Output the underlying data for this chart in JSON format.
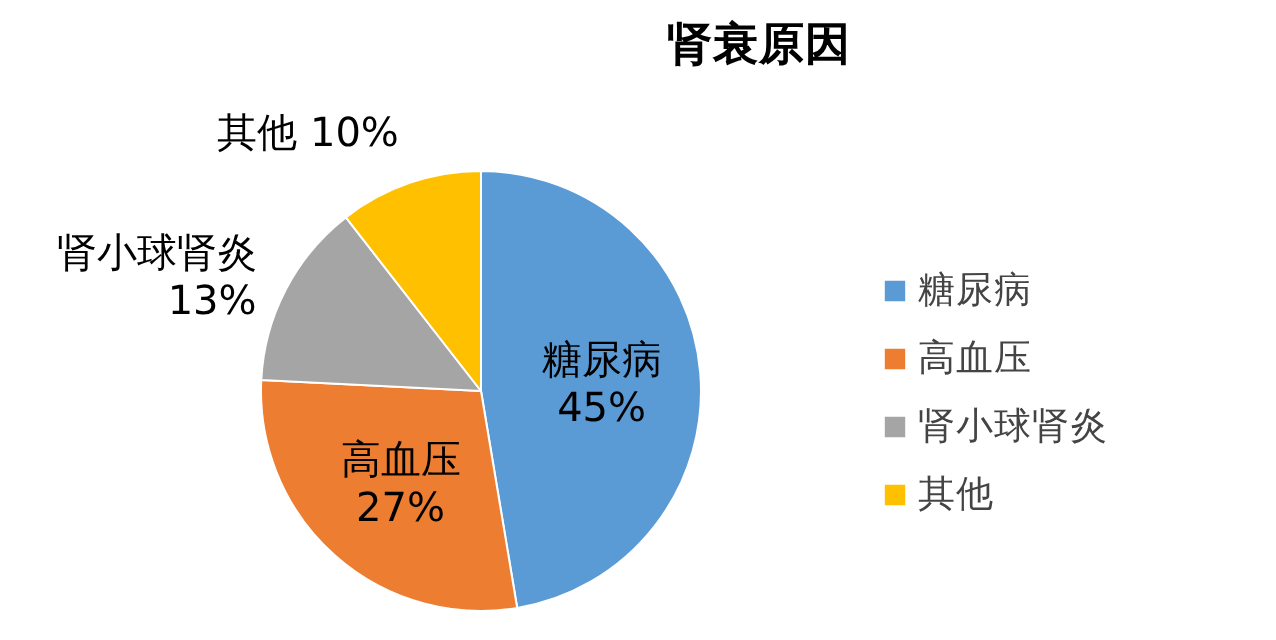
{
  "chart_data": {
    "type": "pie",
    "title": "肾衰原因",
    "categories": [
      "糖尿病",
      "高血压",
      "肾小球肾炎",
      "其他"
    ],
    "values": [
      45,
      27,
      13,
      10
    ],
    "colors": [
      "#5b9bd5",
      "#ed7d31",
      "#a5a5a5",
      "#ffc000"
    ],
    "value_labels": [
      "45%",
      "27%",
      "13%",
      "10%"
    ],
    "legend": "right"
  }
}
